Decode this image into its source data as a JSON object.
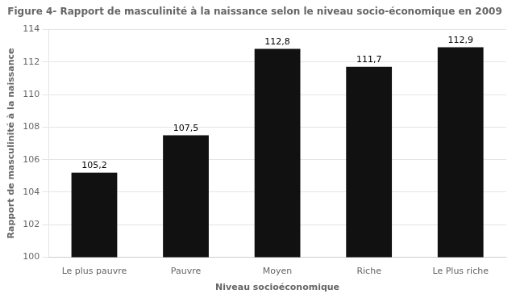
{
  "chart_data": {
    "type": "bar",
    "title": "Figure 4- Rapport de masculinité à la naissance selon le niveau socio-économique en 2009",
    "xlabel": "Niveau socioéconomique",
    "ylabel": "Rapport de masculinité à la naissance",
    "categories": [
      "Le plus pauvre",
      "Pauvre",
      "Moyen",
      "Riche",
      "Le Plus riche"
    ],
    "values": [
      105.2,
      107.5,
      112.8,
      111.7,
      112.9
    ],
    "value_labels": [
      "105,2",
      "107,5",
      "112,8",
      "111,7",
      "112,9"
    ],
    "color": "#111111",
    "ylim": [
      100,
      114
    ],
    "yticks": [
      100,
      102,
      104,
      106,
      108,
      110,
      112,
      114
    ],
    "grid": true,
    "data_labels": true
  }
}
